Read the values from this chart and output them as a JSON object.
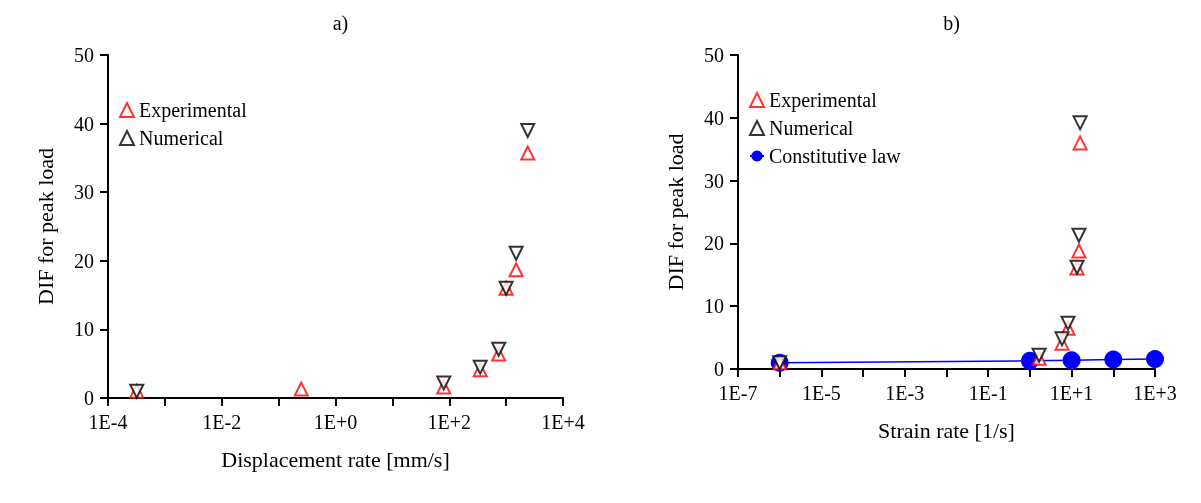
{
  "chart_data": [
    {
      "type": "scatter",
      "title": "a)",
      "xlabel": "Displacement rate [mm/s]",
      "ylabel": "DIF for peak load",
      "log": "x",
      "grid": false,
      "legend": "top left",
      "xlim": [
        0.0001,
        10000
      ],
      "xticks": [
        {
          "value": 0.0001,
          "label": "1E-4"
        },
        {
          "value": 0.001,
          "label": null
        },
        {
          "value": 0.01,
          "label": "1E-2"
        },
        {
          "value": 0.1,
          "label": null
        },
        {
          "value": 1,
          "label": "1E+0"
        },
        {
          "value": 10,
          "label": null
        },
        {
          "value": 100,
          "label": "1E+2"
        },
        {
          "value": 1000,
          "label": null
        },
        {
          "value": 10000,
          "label": "1E+4"
        }
      ],
      "ylim": [
        0,
        50
      ],
      "yticks": [
        0,
        10,
        20,
        30,
        40,
        50
      ],
      "series": [
        {
          "name": "Experimental",
          "color": "#ff0000",
          "marker": "triangle",
          "x": [
            0.00032,
            0.25,
            80,
            350,
            740,
            1000,
            1500,
            2400
          ],
          "values": [
            1.0,
            1.3,
            1.6,
            4.1,
            6.4,
            16,
            18.7,
            35.7
          ]
        },
        {
          "name": "Numerical",
          "color": "#000000",
          "marker": "triangle-down",
          "x": [
            0.00032,
            80,
            350,
            740,
            1000,
            1500,
            2400
          ],
          "values": [
            1.0,
            2.2,
            4.5,
            7.1,
            16,
            21.1,
            39
          ]
        }
      ]
    },
    {
      "type": "scatter",
      "title": "b)",
      "xlabel": "Strain rate [1/s]",
      "ylabel": "DIF for peak load",
      "log": "x",
      "grid": false,
      "legend": "top left",
      "xlim": [
        1e-07,
        1000
      ],
      "xticks": [
        {
          "value": 1e-07,
          "label": "1E-7"
        },
        {
          "value": 1e-06,
          "label": null
        },
        {
          "value": 1e-05,
          "label": "1E-5"
        },
        {
          "value": 0.0001,
          "label": null
        },
        {
          "value": 0.001,
          "label": "1E-3"
        },
        {
          "value": 0.01,
          "label": null
        },
        {
          "value": 0.1,
          "label": "1E-1"
        },
        {
          "value": 1,
          "label": null
        },
        {
          "value": 10,
          "label": "1E+1"
        },
        {
          "value": 100,
          "label": null
        },
        {
          "value": 1000,
          "label": "1E+3"
        }
      ],
      "ylim": [
        0,
        50
      ],
      "yticks": [
        0,
        10,
        20,
        30,
        40,
        50
      ],
      "series": [
        {
          "name": "Experimental",
          "color": "#ff0000",
          "marker": "triangle",
          "x": [
            1e-06,
            1.66,
            5.9,
            8.2,
            13.5,
            15,
            16
          ],
          "values": [
            1.0,
            1.7,
            4.1,
            6.5,
            16.1,
            18.8,
            36
          ]
        },
        {
          "name": "Numerical",
          "color": "#000000",
          "marker": "triangle-down",
          "x": [
            1e-06,
            1.66,
            5.9,
            8.2,
            13.5,
            15,
            16
          ],
          "values": [
            1.0,
            2.2,
            4.8,
            7.3,
            16.2,
            21.3,
            39.2
          ]
        },
        {
          "name": "Constitutive law",
          "type": "line",
          "color": "#0000ff",
          "marker": "circle",
          "x": [
            1e-06,
            1,
            10,
            100,
            1000
          ],
          "values": [
            1.0,
            1.3,
            1.4,
            1.5,
            1.6
          ]
        }
      ]
    }
  ]
}
